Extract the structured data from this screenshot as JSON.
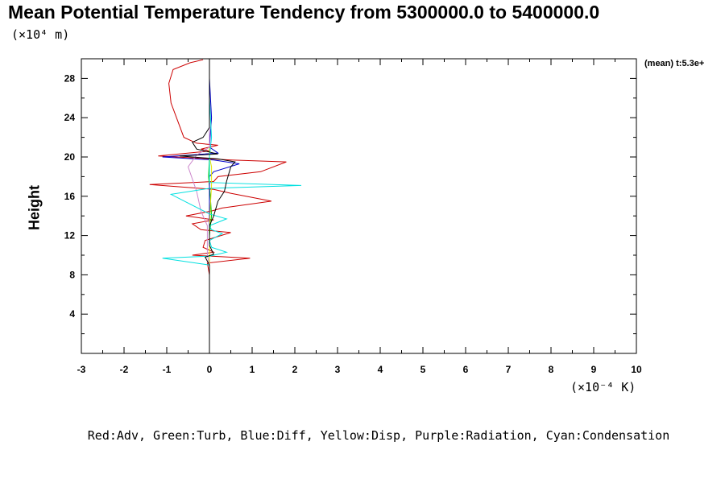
{
  "title": "Mean Potential Temperature Tendency from 5300000.0 to 5400000.0",
  "time_label": "(mean) t:5.3e+",
  "legend_text": "Red:Adv, Green:Turb, Blue:Diff, Yellow:Disp, Purple:Radiation, Cyan:Condensation",
  "chart_data": {
    "type": "line",
    "title": "Mean Potential Temperature Tendency from 5300000.0 to 5400000.0",
    "xlabel": "",
    "ylabel": "Height",
    "x_unit": "(×10⁻⁴ K)",
    "y_unit": "(×10⁴ m)",
    "xlim": [
      -3,
      10
    ],
    "ylim": [
      0,
      30
    ],
    "x_ticks": [
      -3,
      -2,
      -1,
      0,
      1,
      2,
      3,
      4,
      5,
      6,
      7,
      8,
      9,
      10
    ],
    "y_ticks": [
      4,
      8,
      12,
      16,
      20,
      24,
      28
    ],
    "grid": false,
    "series": [
      {
        "name": "Adv",
        "color": "#cc0000",
        "points": [
          [
            0,
            0
          ],
          [
            0,
            8
          ],
          [
            -0.05,
            9.2
          ],
          [
            0.95,
            9.7
          ],
          [
            -0.4,
            10.0
          ],
          [
            0.1,
            10.3
          ],
          [
            -0.15,
            10.8
          ],
          [
            -0.1,
            11.5
          ],
          [
            0.5,
            12.3
          ],
          [
            -0.2,
            12.6
          ],
          [
            -0.4,
            13.2
          ],
          [
            0.1,
            13.6
          ],
          [
            -0.55,
            14.0
          ],
          [
            0.05,
            14.5
          ],
          [
            0.3,
            14.8
          ],
          [
            1.45,
            15.5
          ],
          [
            0.5,
            16.3
          ],
          [
            0.1,
            16.7
          ],
          [
            -1.4,
            17.2
          ],
          [
            0.1,
            17.5
          ],
          [
            0.2,
            18.0
          ],
          [
            1.2,
            18.5
          ],
          [
            1.8,
            19.5
          ],
          [
            0.5,
            19.7
          ],
          [
            -1.2,
            20.1
          ],
          [
            0.0,
            20.6
          ],
          [
            -0.2,
            20.8
          ],
          [
            0.2,
            21.2
          ],
          [
            -0.3,
            21.4
          ],
          [
            -0.6,
            22.0
          ],
          [
            -0.9,
            25.5
          ],
          [
            -0.95,
            27.5
          ],
          [
            -0.85,
            28.9
          ],
          [
            -0.45,
            29.6
          ],
          [
            -0.15,
            29.9
          ]
        ]
      },
      {
        "name": "Turb",
        "color": "#00cc00",
        "points": [
          [
            0,
            0
          ],
          [
            0,
            12
          ],
          [
            0.05,
            14
          ],
          [
            0.02,
            16
          ],
          [
            -0.02,
            18
          ],
          [
            0.0,
            20
          ],
          [
            0.0,
            24
          ],
          [
            0,
            30
          ]
        ]
      },
      {
        "name": "Diff",
        "color": "#0000cc",
        "points": [
          [
            0,
            0
          ],
          [
            0,
            18
          ],
          [
            0.1,
            18.5
          ],
          [
            0.7,
            19.3
          ],
          [
            0.1,
            19.7
          ],
          [
            -1.1,
            20.0
          ],
          [
            0.2,
            20.4
          ],
          [
            0.0,
            21
          ],
          [
            0.05,
            24
          ],
          [
            0.0,
            28
          ],
          [
            0.0,
            30
          ]
        ]
      },
      {
        "name": "Disp",
        "color": "#e6e600",
        "points": [
          [
            0,
            0
          ],
          [
            0,
            12
          ],
          [
            0.02,
            15
          ],
          [
            0.05,
            17
          ],
          [
            0.05,
            19
          ],
          [
            0,
            20
          ],
          [
            0,
            30
          ]
        ]
      },
      {
        "name": "Radiation",
        "color": "#cc88cc",
        "points": [
          [
            0,
            0
          ],
          [
            0,
            9
          ],
          [
            -0.05,
            10
          ],
          [
            -0.05,
            13
          ],
          [
            -0.2,
            14.5
          ],
          [
            -0.3,
            16.5
          ],
          [
            -0.5,
            19.0
          ],
          [
            -0.3,
            20.2
          ],
          [
            0.0,
            21
          ],
          [
            0,
            30
          ]
        ]
      },
      {
        "name": "Condensation",
        "color": "#00e0e0",
        "points": [
          [
            0,
            0
          ],
          [
            0,
            9
          ],
          [
            -1.1,
            9.7
          ],
          [
            0.0,
            9.9
          ],
          [
            0.4,
            10.3
          ],
          [
            0.05,
            10.8
          ],
          [
            0.0,
            11.5
          ],
          [
            0.3,
            12.2
          ],
          [
            0.05,
            12.6
          ],
          [
            0.0,
            13.0
          ],
          [
            0.4,
            13.7
          ],
          [
            0.0,
            14.2
          ],
          [
            -0.9,
            16.2
          ],
          [
            0.0,
            16.8
          ],
          [
            2.15,
            17.1
          ],
          [
            0.0,
            17.4
          ],
          [
            0.0,
            20
          ],
          [
            0.05,
            22
          ],
          [
            0.0,
            26
          ],
          [
            0.0,
            30
          ]
        ]
      },
      {
        "name": "",
        "color": "#000000",
        "points": [
          [
            0,
            0
          ],
          [
            0,
            9
          ],
          [
            -0.1,
            9.8
          ],
          [
            0.1,
            10.1
          ],
          [
            0.0,
            11
          ],
          [
            0.0,
            13
          ],
          [
            0.1,
            14
          ],
          [
            0.2,
            15.5
          ],
          [
            0.35,
            16.5
          ],
          [
            0.4,
            17.5
          ],
          [
            0.5,
            19.0
          ],
          [
            0.6,
            19.5
          ],
          [
            0.2,
            19.8
          ],
          [
            -0.7,
            20.1
          ],
          [
            0.2,
            20.3
          ],
          [
            -0.3,
            20.8
          ],
          [
            -0.4,
            21.5
          ],
          [
            -0.15,
            22.0
          ],
          [
            0.0,
            23
          ],
          [
            0.0,
            30
          ]
        ]
      }
    ]
  }
}
